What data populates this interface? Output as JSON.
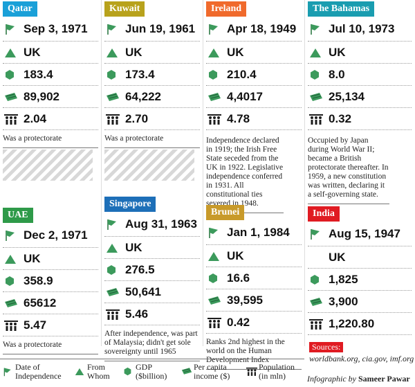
{
  "colors": {
    "qatar": "#1aa0d8",
    "kuwait": "#b8a21c",
    "ireland": "#f06a2c",
    "bahamas": "#1a9db0",
    "uae": "#2e9a49",
    "singapore": "#1d6fb8",
    "brunei": "#c89a2a",
    "india": "#e01b22",
    "icon": "#3c9a5c"
  },
  "icons": {
    "date": "flag-icon",
    "whom": "triangle-icon",
    "gdp": "hexagon-icon",
    "income": "money-icon",
    "population": "people-icon"
  },
  "countries": [
    {
      "name": "Qatar",
      "date": "Sep 3, 1971",
      "from": "UK",
      "gdp": "183.4",
      "income": "89,902",
      "population": "2.04",
      "note": "Was a protectorate"
    },
    {
      "name": "Kuwait",
      "date": "Jun 19, 1961",
      "from": "UK",
      "gdp": "173.4",
      "income": "64,222",
      "population": "2.70",
      "note": "Was a protectorate"
    },
    {
      "name": "Ireland",
      "date": "Apr 18, 1949",
      "from": "UK",
      "gdp": "210.4",
      "income": "4,4017",
      "population": "4.78",
      "note": "Independence declared in 1919; the Irish Free State seceded from the UK in 1922. Legislative independence conferred in 1931. All constitutional ties severed in 1948."
    },
    {
      "name": "The Bahamas",
      "date": "Jul 10, 1973",
      "from": "UK",
      "gdp": "8.0",
      "income": "25,134",
      "population": "0.32",
      "note": "Occupied by Japan during World War II; became a British protectorate thereafter. In 1959, a new constitution was written, declaring it a self-governing state."
    },
    {
      "name": "UAE",
      "date": "Dec 2, 1971",
      "from": "UK",
      "gdp": "358.9",
      "income": "65612",
      "population": "5.47",
      "note": "Was a protectorate"
    },
    {
      "name": "Singapore",
      "date": "Aug 31, 1963",
      "from": "UK",
      "gdp": "276.5",
      "income": "50,641",
      "population": "5.46",
      "note": "After independence, was part of Malaysia; didn't get sole sovereignty until 1965"
    },
    {
      "name": "Brunei",
      "date": "Jan 1, 1984",
      "from": "UK",
      "gdp": "16.6",
      "income": "39,595",
      "population": "0.42",
      "note": "Ranks 2nd highest in the world on the Human Development Index"
    },
    {
      "name": "India",
      "date": "Aug 15, 1947",
      "from": "UK",
      "gdp": "1,825",
      "income": "3,900",
      "population": "1,220.80",
      "note": ""
    }
  ],
  "legend": {
    "date": "Date of Independence",
    "whom": "From Whom",
    "gdp": "GDP ($billion)",
    "income": "Per capita income ($)",
    "population": "Population (in mln)"
  },
  "sources": {
    "label": "Sources:",
    "text": "worldbank.org, cia.gov, imf.org"
  },
  "credit": {
    "prefix": "Infographic by",
    "name": "Sameer Pawar"
  }
}
